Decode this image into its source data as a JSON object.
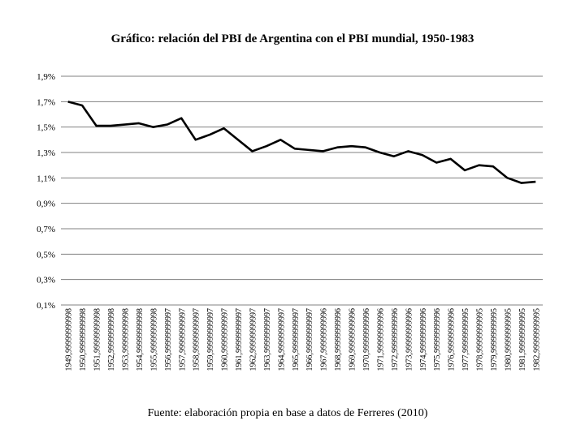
{
  "chart_data": {
    "type": "line",
    "title": "Gráfico: relación del PBI de Argentina con el PBI mundial, 1950-1983",
    "xlabel": "",
    "ylabel": "",
    "ylim": [
      0.1,
      1.9
    ],
    "y_ticks": [
      "1,9%",
      "1,7%",
      "1,5%",
      "1,3%",
      "1,1%",
      "0,9%",
      "0,7%",
      "0,5%",
      "0,3%",
      "0,1%"
    ],
    "y_tick_values": [
      1.9,
      1.7,
      1.5,
      1.3,
      1.1,
      0.9,
      0.7,
      0.5,
      0.3,
      0.1
    ],
    "grid": true,
    "legend": "none",
    "categories": [
      "1949,99999999998",
      "1950,99999999998",
      "1951,99999999998",
      "1952,99999999998",
      "1953,99999999998",
      "1954,99999999998",
      "1955,99999999998",
      "1956,99999999997",
      "1957,99999999997",
      "1958,99999999997",
      "1959,99999999997",
      "1960,99999999997",
      "1961,99999999997",
      "1962,99999999997",
      "1963,99999999997",
      "1964,99999999997",
      "1965,99999999997",
      "1966,99999999997",
      "1967,99999999996",
      "1968,99999999996",
      "1969,99999999996",
      "1970,99999999996",
      "1971,99999999996",
      "1972,99999999996",
      "1973,99999999996",
      "1974,99999999996",
      "1975,99999999996",
      "1976,99999999996",
      "1977,99999999995",
      "1978,99999999995",
      "1979,99999999995",
      "1980,99999999995",
      "1981,99999999995",
      "1982,99999999995"
    ],
    "series": [
      {
        "values": [
          1.7,
          1.67,
          1.51,
          1.51,
          1.52,
          1.53,
          1.5,
          1.52,
          1.57,
          1.4,
          1.44,
          1.49,
          1.4,
          1.31,
          1.35,
          1.4,
          1.33,
          1.32,
          1.31,
          1.34,
          1.35,
          1.34,
          1.3,
          1.27,
          1.31,
          1.28,
          1.22,
          1.25,
          1.16,
          1.2,
          1.19,
          1.1,
          1.06,
          1.07
        ],
        "color": "#000000"
      }
    ],
    "source": "Fuente: elaboración propia en base a datos de Ferreres (2010)"
  }
}
